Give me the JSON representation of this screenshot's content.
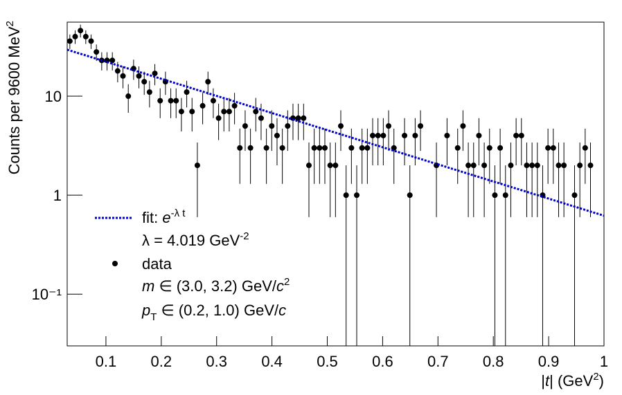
{
  "chart_data": {
    "type": "scatter",
    "y_label": {
      "text": "Counts per 9600 MeV",
      "sup": "2"
    },
    "x_label": {
      "pre": "|",
      "var": "t",
      "post": "| (GeV",
      "sup": "2",
      "close": ")"
    },
    "log_y": true,
    "xlim": [
      0.03,
      1
    ],
    "ylim": [
      0.03,
      56
    ],
    "xticks": [
      0.1,
      0.2,
      0.3,
      0.4,
      0.5,
      0.6,
      0.7,
      0.8,
      0.9,
      1
    ],
    "yticks": [
      {
        "value": 0.1,
        "label": "10⁻¹"
      },
      1,
      10
    ],
    "series": [
      {
        "name": "data",
        "color": "#000000",
        "x": [
          0.0348,
          0.0444,
          0.054,
          0.0636,
          0.0732,
          0.0828,
          0.0924,
          0.102,
          0.1116,
          0.1212,
          0.1308,
          0.1404,
          0.15,
          0.1596,
          0.1692,
          0.1788,
          0.1884,
          0.198,
          0.2076,
          0.2172,
          0.2268,
          0.2364,
          0.246,
          0.2556,
          0.2652,
          0.2748,
          0.2844,
          0.294,
          0.3036,
          0.3132,
          0.3228,
          0.3324,
          0.342,
          0.3516,
          0.3612,
          0.3708,
          0.3804,
          0.39,
          0.3996,
          0.4092,
          0.4188,
          0.4284,
          0.438,
          0.4476,
          0.4572,
          0.4668,
          0.4764,
          0.486,
          0.4956,
          0.5052,
          0.5148,
          0.5244,
          0.534,
          0.5436,
          0.5532,
          0.5628,
          0.5724,
          0.582,
          0.5916,
          0.6012,
          0.6108,
          0.6204,
          0.63,
          0.6396,
          0.6492,
          0.6588,
          0.6684,
          0.678,
          0.6876,
          0.6972,
          0.7068,
          0.7164,
          0.726,
          0.7356,
          0.7452,
          0.7548,
          0.7644,
          0.774,
          0.7836,
          0.7932,
          0.8028,
          0.8124,
          0.822,
          0.8316,
          0.8412,
          0.8508,
          0.8604,
          0.87,
          0.8796,
          0.8892,
          0.8988,
          0.9084,
          0.918,
          0.9276,
          0.9372,
          0.9468,
          0.9564,
          0.966,
          0.9756,
          0.9852,
          0.9948
        ],
        "values": [
          36,
          40,
          46,
          40,
          36,
          28,
          23,
          23,
          23,
          18,
          16,
          10,
          19,
          16,
          14,
          11,
          17,
          9,
          14,
          9,
          9,
          7,
          11,
          7,
          2,
          8,
          14,
          9,
          6,
          7,
          7,
          8,
          3,
          5,
          3,
          7,
          6,
          3,
          5,
          4,
          3,
          5,
          6,
          6,
          6,
          2,
          3,
          3,
          3,
          2,
          2,
          5,
          1,
          3,
          1,
          3,
          3,
          4,
          4,
          4,
          5,
          3,
          null,
          4,
          1,
          4,
          5,
          null,
          null,
          2,
          null,
          4,
          null,
          3,
          5,
          2,
          2,
          4,
          2,
          3,
          1,
          3,
          1,
          2,
          4,
          4,
          2,
          2,
          2,
          1,
          3,
          3,
          2,
          2,
          null,
          1,
          2,
          3,
          2,
          null,
          null
        ],
        "errors": [
          6,
          6.3,
          6.8,
          6.3,
          6,
          5.3,
          4.8,
          4.8,
          4.8,
          4.2,
          4,
          3.2,
          4.4,
          4,
          3.7,
          3.3,
          4.1,
          3,
          3.7,
          3,
          3,
          2.6,
          3.3,
          2.6,
          1.4,
          2.8,
          3.7,
          3,
          2.4,
          2.6,
          2.6,
          2.8,
          1.7,
          2.2,
          1.7,
          2.6,
          2.4,
          1.7,
          2.2,
          2,
          1.7,
          2.2,
          2.4,
          2.4,
          2.4,
          1.4,
          1.7,
          1.7,
          1.7,
          1.4,
          1.4,
          2.2,
          1,
          1.7,
          1,
          1.7,
          1.7,
          2,
          2,
          2,
          2.2,
          1.7,
          null,
          2,
          1,
          2,
          2.2,
          null,
          null,
          1.4,
          null,
          2,
          null,
          1.7,
          2.2,
          1.4,
          1.4,
          2,
          1.4,
          1.7,
          1,
          1.7,
          1,
          1.4,
          2,
          2,
          1.4,
          1.4,
          1.4,
          1,
          1.7,
          1.7,
          1.4,
          1.4,
          null,
          1,
          1.4,
          1.7,
          1.4,
          null,
          null
        ]
      },
      {
        "name": {
          "pre": "fit: ",
          "var": "e",
          "sup": "-λ t"
        },
        "color": "#0000cc",
        "style": "dotted",
        "x": [
          0.03,
          1
        ],
        "values": [
          29.5,
          0.62
        ]
      }
    ],
    "annotations": {
      "lambda": {
        "text": "λ = 4.019 GeV",
        "sup": "-2"
      },
      "mass": {
        "var": "m",
        "text": " ∈ (3.0, 3.2) GeV/",
        "var2": "c",
        "sup": "2"
      },
      "pt": {
        "var": "p",
        "sub": "T",
        "text": " ∈ (0.2, 1.0) GeV/",
        "var2": "c"
      }
    }
  }
}
